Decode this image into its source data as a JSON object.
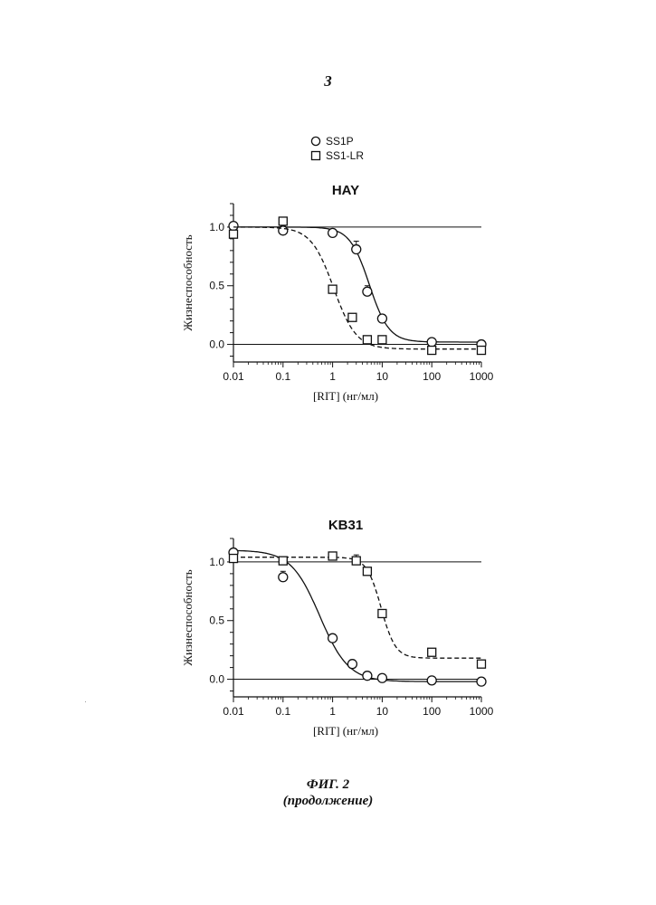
{
  "page": {
    "number": "3"
  },
  "legend": {
    "entries": [
      {
        "label": "SS1P",
        "marker": "circle"
      },
      {
        "label": "SS1-LR",
        "marker": "square"
      }
    ]
  },
  "caption": {
    "line1": "ФИГ. 2",
    "line2": "(продолжение)"
  },
  "chart_data": [
    {
      "type": "scatter",
      "title": "HAY",
      "xlabel": "[RIT] (нг/мл)",
      "ylabel": "Жизнеспособность",
      "xscale": "log",
      "xlim": [
        0.01,
        1000
      ],
      "ylim": [
        -0.15,
        1.2
      ],
      "xticks": [
        0.01,
        0.1,
        1,
        10,
        100,
        1000
      ],
      "xtick_labels": [
        "0.01",
        "0.1",
        "1",
        "10",
        "100",
        "1000"
      ],
      "yticks": [
        0.0,
        0.5,
        1.0
      ],
      "ytick_labels": [
        "0.0",
        "0.5",
        "1.0"
      ],
      "reference_lines": [
        1.0,
        0.0
      ],
      "grid": false,
      "series": [
        {
          "name": "SS1P",
          "marker": "circle",
          "line": "solid",
          "x": [
            0.01,
            0.1,
            1,
            3,
            5,
            10,
            100,
            1000
          ],
          "y": [
            1.01,
            0.97,
            0.95,
            0.81,
            0.45,
            0.22,
            0.02,
            0.0
          ],
          "err": [
            0.03,
            0.04,
            0.02,
            0.07,
            0.05,
            0.02,
            0.02,
            0.02
          ],
          "fit": {
            "top": 1.0,
            "bottom": 0.02,
            "ec50": 5.5,
            "hill": 2.2
          }
        },
        {
          "name": "SS1-LR",
          "marker": "square",
          "line": "dashed",
          "x": [
            0.01,
            0.1,
            1,
            2.5,
            5,
            10,
            100,
            1000
          ],
          "y": [
            0.94,
            1.05,
            0.47,
            0.23,
            0.04,
            0.04,
            -0.05,
            -0.05
          ],
          "err": [
            0.0,
            0.0,
            0.0,
            0.0,
            0.0,
            0.0,
            0.0,
            0.0
          ],
          "fit": {
            "top": 1.0,
            "bottom": -0.04,
            "ec50": 1.05,
            "hill": 1.9
          }
        }
      ]
    },
    {
      "type": "scatter",
      "title": "KB31",
      "xlabel": "[RIT] (нг/мл)",
      "ylabel": "Жизнеспособность",
      "xscale": "log",
      "xlim": [
        0.01,
        1000
      ],
      "ylim": [
        -0.15,
        1.2
      ],
      "xticks": [
        0.01,
        0.1,
        1,
        10,
        100,
        1000
      ],
      "xtick_labels": [
        "0.01",
        "0.1",
        "1",
        "10",
        "100",
        "1000"
      ],
      "yticks": [
        0.0,
        0.5,
        1.0
      ],
      "ytick_labels": [
        "0.0",
        "0.5",
        "1.0"
      ],
      "reference_lines": [
        1.0,
        0.0
      ],
      "grid": false,
      "series": [
        {
          "name": "SS1P",
          "marker": "circle",
          "line": "solid",
          "x": [
            0.01,
            0.1,
            1,
            2.5,
            5,
            10,
            100,
            1000
          ],
          "y": [
            1.08,
            0.87,
            0.35,
            0.13,
            0.03,
            0.01,
            -0.01,
            -0.02
          ],
          "err": [
            0.03,
            0.05,
            0.02,
            0.02,
            0.01,
            0.01,
            0.01,
            0.01
          ],
          "fit": {
            "top": 1.1,
            "bottom": -0.02,
            "ec50": 0.55,
            "hill": 1.5
          }
        },
        {
          "name": "SS1-LR",
          "marker": "square",
          "line": "dashed",
          "x": [
            0.01,
            0.1,
            1,
            3,
            5,
            10,
            100,
            1000
          ],
          "y": [
            1.03,
            1.01,
            1.05,
            1.01,
            0.92,
            0.56,
            0.23,
            0.13
          ],
          "err": [
            0.0,
            0.0,
            0.0,
            0.05,
            0.0,
            0.0,
            0.0,
            0.0
          ],
          "fit": {
            "top": 1.04,
            "bottom": 0.18,
            "ec50": 9.5,
            "hill": 3.0
          }
        }
      ]
    }
  ]
}
